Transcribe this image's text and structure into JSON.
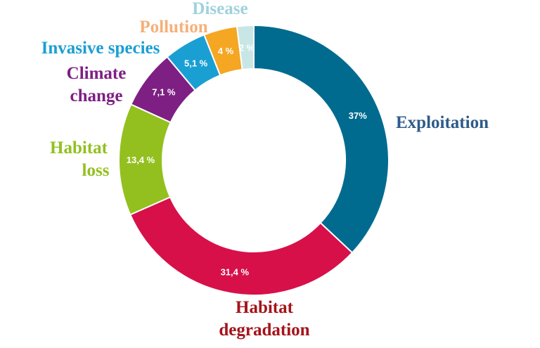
{
  "chart_data": {
    "type": "pie",
    "variant": "donut",
    "title": "",
    "categories": [
      "Exploitation",
      "Habitat degradation",
      "Habitat loss",
      "Climate change",
      "Invasive species",
      "Pollution",
      "Disease"
    ],
    "values": [
      37,
      31.4,
      13.4,
      7.1,
      5.1,
      4,
      2
    ],
    "value_labels": [
      "37%",
      "31,4 %",
      "13,4 %",
      "7,1 %",
      "5,1 %",
      "4 %",
      "2 %"
    ],
    "slice_colors": [
      "#006b8f",
      "#d7104a",
      "#93c01f",
      "#7e1f83",
      "#1a9fd3",
      "#f5a623",
      "#c8e6e6"
    ],
    "slice_label_colors": [
      "#ffffff",
      "#ffffff",
      "#ffffff",
      "#ffffff",
      "#ffffff",
      "#ffffff",
      "#3a4a55"
    ],
    "category_label_colors": [
      "#2e5b8a",
      "#a3141a",
      "#93c01f",
      "#7e1f83",
      "#1a9fd3",
      "#f5b07a",
      "#9fd2dd"
    ]
  }
}
